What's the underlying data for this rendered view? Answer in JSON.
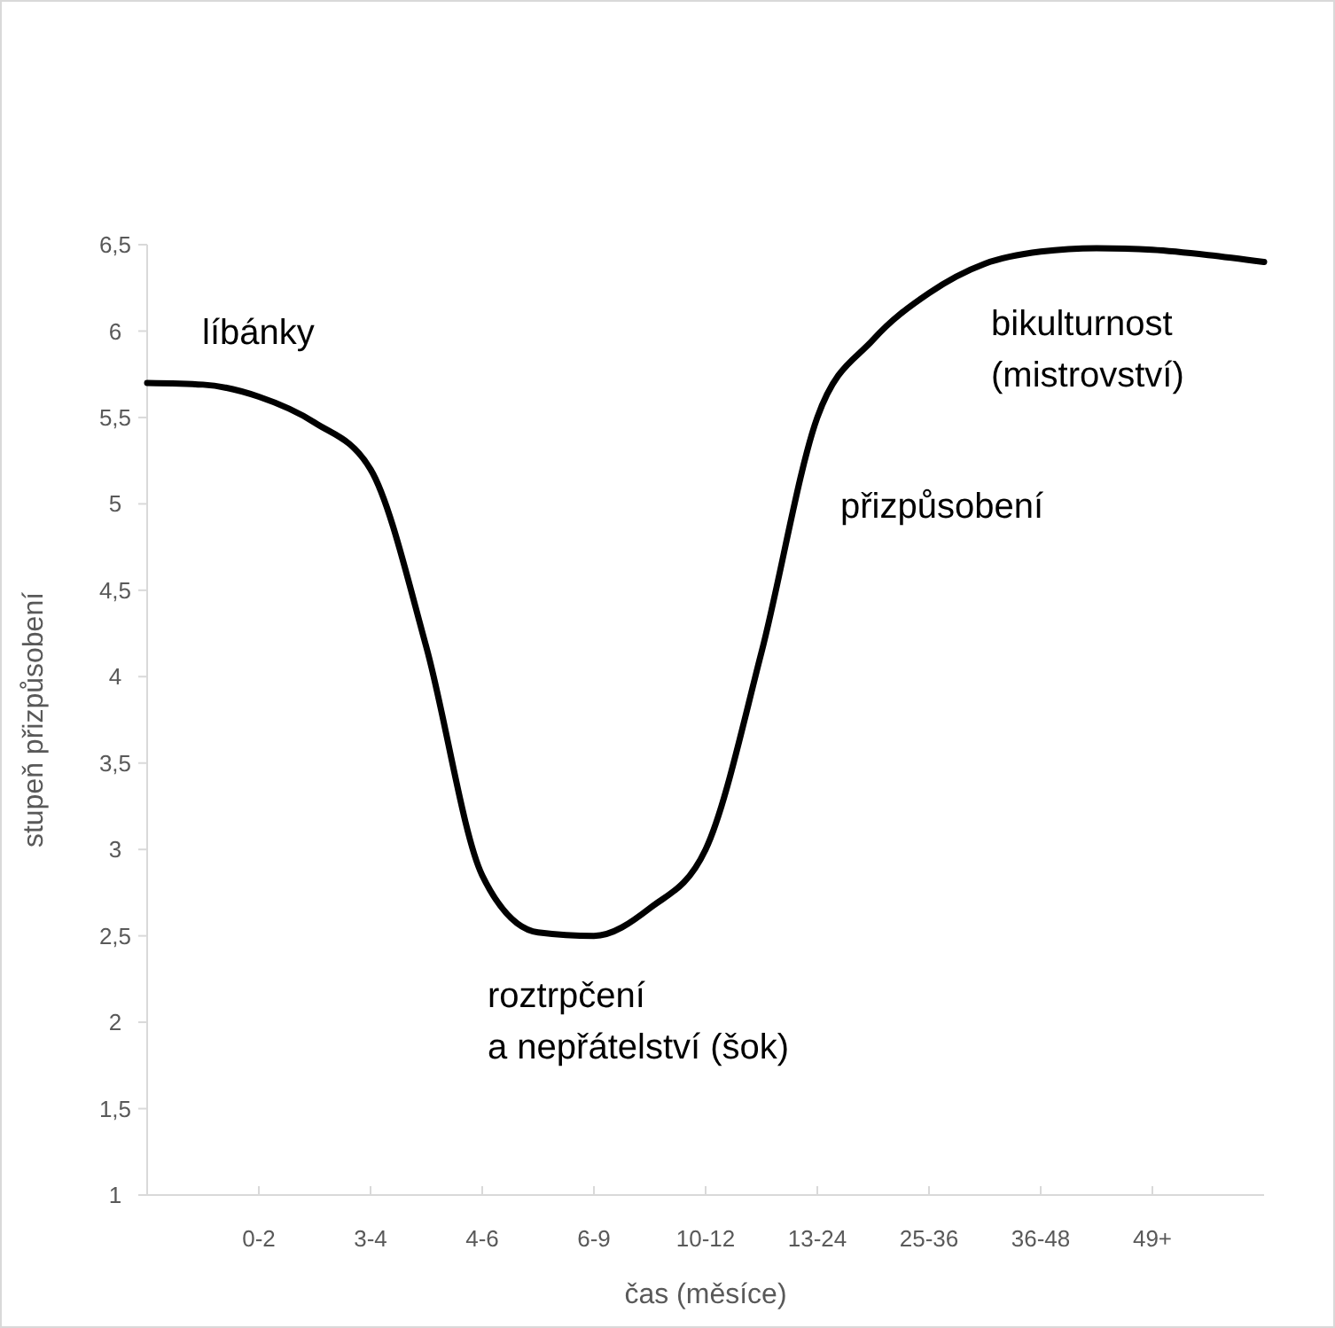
{
  "chart_data": {
    "type": "line",
    "xlabel": "čas (měsíce)",
    "ylabel": "stupeň přizpůsobení",
    "categories": [
      null,
      null,
      "0-2",
      null,
      "3-4",
      null,
      "4-6",
      null,
      "6-9",
      null,
      "10-12",
      null,
      "13-24",
      null,
      "25-36",
      null,
      "36-48",
      null,
      "49+",
      null,
      null
    ],
    "series": [
      {
        "color": "#000000",
        "values": [
          5.7,
          5.69,
          5.62,
          5.47,
          5.2,
          4.17,
          2.85,
          2.52,
          2.5,
          2.66,
          3.0,
          4.14,
          5.5,
          5.95,
          6.22,
          6.39,
          6.46,
          6.48,
          6.47,
          6.44,
          6.4
        ]
      }
    ],
    "ylim": [
      1,
      6.5
    ],
    "yticks": [
      1,
      {
        "value": 1.5,
        "label": "1,5"
      },
      2,
      {
        "value": 2.5,
        "label": "2,5"
      },
      3,
      {
        "value": 3.5,
        "label": "3,5"
      },
      4,
      {
        "value": 4.5,
        "label": "4,5"
      },
      5,
      {
        "value": 5.5,
        "label": "5,5"
      },
      6,
      {
        "value": 6.5,
        "label": "6,5"
      }
    ],
    "grid": false,
    "marker": "none",
    "line_style": "solid",
    "annotations": [
      "líbánky",
      "roztrpčení\na nepřátelství (šok)",
      "přizpůsobení",
      "bikulturnost\n(mistrovství)"
    ]
  }
}
